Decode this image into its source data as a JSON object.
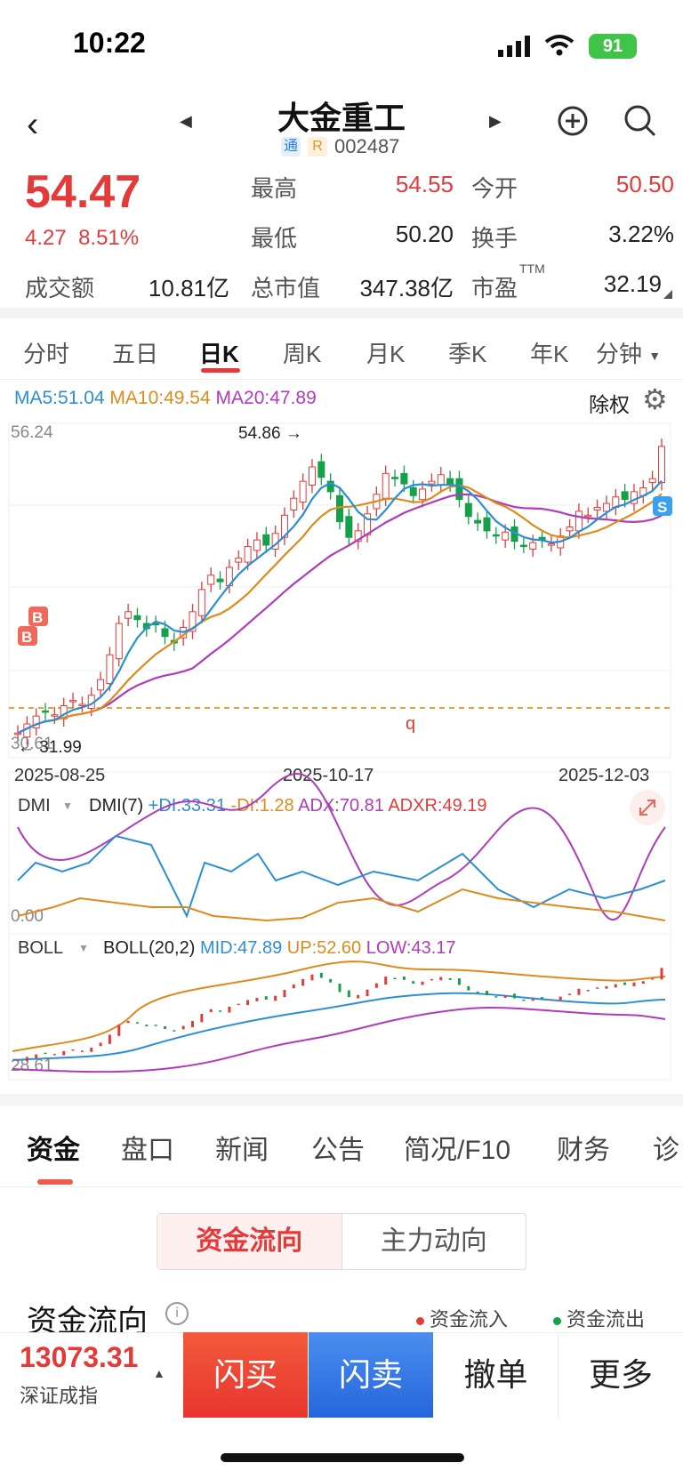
{
  "status_bar": {
    "time": "10:22",
    "battery": "91"
  },
  "header": {
    "title": "大金重工",
    "tag_tong": "通",
    "tag_r": "R",
    "code": "002487"
  },
  "quote": {
    "price": "54.47",
    "change": "4.27",
    "change_pct": "8.51%",
    "high_label": "最高",
    "high": "54.55",
    "open_label": "今开",
    "open": "50.50",
    "low_label": "最低",
    "low": "50.20",
    "turnover_label": "换手",
    "turnover": "3.22%",
    "amount_label": "成交额",
    "amount": "10.81亿",
    "mcap_label": "总市值",
    "mcap": "347.38亿",
    "pe_label": "市盈",
    "pe_sup": "TTM",
    "pe": "32.19"
  },
  "ktabs": [
    "分时",
    "五日",
    "日K",
    "周K",
    "月K",
    "季K",
    "年K",
    "分钟"
  ],
  "chart_header": {
    "ma5": "MA5:51.04",
    "ma10": "MA10:49.54",
    "ma20": "MA20:47.89",
    "chuquan": "除权"
  },
  "chart_data": {
    "type": "candlestick",
    "y_top_label": "56.24",
    "y_bottom_label": "30.61",
    "high_annotation": "54.86",
    "low_annotation": "31.99",
    "x_labels": [
      "2025-08-25",
      "2025-10-17",
      "2025-12-03"
    ],
    "buy_marker": "B",
    "sell_marker": "S",
    "event_marker": "q",
    "colors": {
      "up": "#e53a3a",
      "down": "#15a04a",
      "ma5": "#2b8fd6",
      "ma10": "#e08a1e",
      "ma20": "#b03bbd"
    }
  },
  "dmi": {
    "selector": "DMI",
    "name": "DMI(7)",
    "pdi": "+DI:33.31",
    "mdi": "-DI:1.28",
    "adx": "ADX:70.81",
    "adxr": "ADXR:49.19",
    "zero": "0.00"
  },
  "boll": {
    "selector": "BOLL",
    "name": "BOLL(20,2)",
    "mid": "MID:47.89",
    "up": "UP:52.60",
    "low": "LOW:43.17",
    "bottom": "28.61"
  },
  "info_tabs": [
    "资金",
    "盘口",
    "新闻",
    "公告",
    "简况/F10",
    "财务",
    "诊"
  ],
  "fund": {
    "switch_active": "资金流向",
    "switch_inactive": "主力动向",
    "title": "资金流向",
    "legend_in": "资金流入",
    "legend_out": "资金流出"
  },
  "bottom": {
    "index_value": "13073.31",
    "index_name": "深证成指",
    "buy": "闪买",
    "sell": "闪卖",
    "cancel": "撤单",
    "more": "更多"
  }
}
